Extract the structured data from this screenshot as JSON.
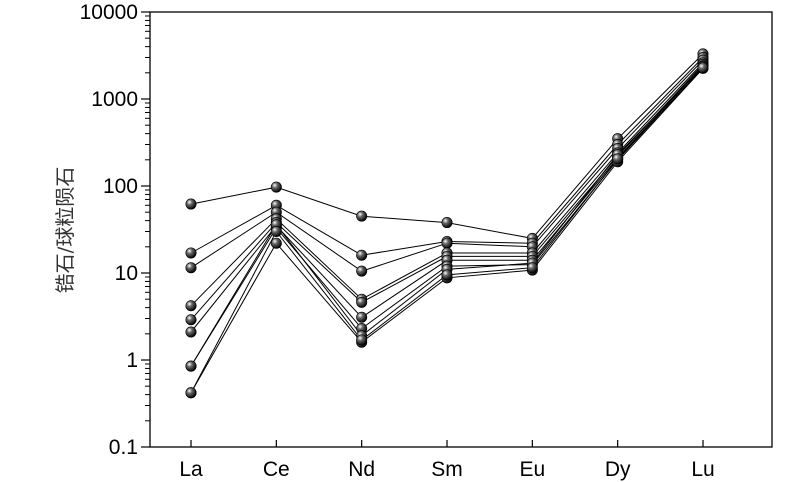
{
  "chart_data": {
    "type": "line",
    "title": "",
    "ylabel": "锆石/球粒陨石",
    "xlabel": "",
    "yscale": "log",
    "ylim": [
      0.1,
      10000
    ],
    "yticks": [
      "0.1",
      "1",
      "10",
      "100",
      "1000",
      "10000"
    ],
    "categories": [
      "La",
      "Ce",
      "Nd",
      "Sm",
      "Eu",
      "Dy",
      "Lu"
    ],
    "grid": false,
    "legend": "none",
    "series": [
      {
        "values": [
          62,
          97,
          45,
          38,
          25,
          350,
          3300
        ]
      },
      {
        "values": [
          17,
          60,
          16,
          23,
          22,
          300,
          3000
        ]
      },
      {
        "values": [
          11.5,
          50,
          10.5,
          22,
          20,
          270,
          2800
        ]
      },
      {
        "values": [
          4.2,
          42,
          5,
          17,
          17,
          240,
          2600
        ]
      },
      {
        "values": [
          2.9,
          38,
          4.6,
          15.5,
          15.5,
          220,
          2500
        ]
      },
      {
        "values": [
          2.1,
          35,
          3.1,
          14,
          14,
          210,
          2400
        ]
      },
      {
        "values": [
          0.85,
          33,
          2.3,
          12,
          12.5,
          200,
          2300
        ]
      },
      {
        "values": [
          0.42,
          22,
          1.6,
          8.8,
          10.8,
          190,
          2250
        ]
      },
      {
        "values": [
          0.85,
          36,
          1.9,
          11,
          13,
          230,
          2350
        ]
      },
      {
        "values": [
          0.42,
          30,
          1.7,
          9.5,
          11.5,
          205,
          2280
        ]
      }
    ],
    "colors": {
      "line": "#000000",
      "marker": "#111111",
      "axis": "#000000"
    }
  }
}
